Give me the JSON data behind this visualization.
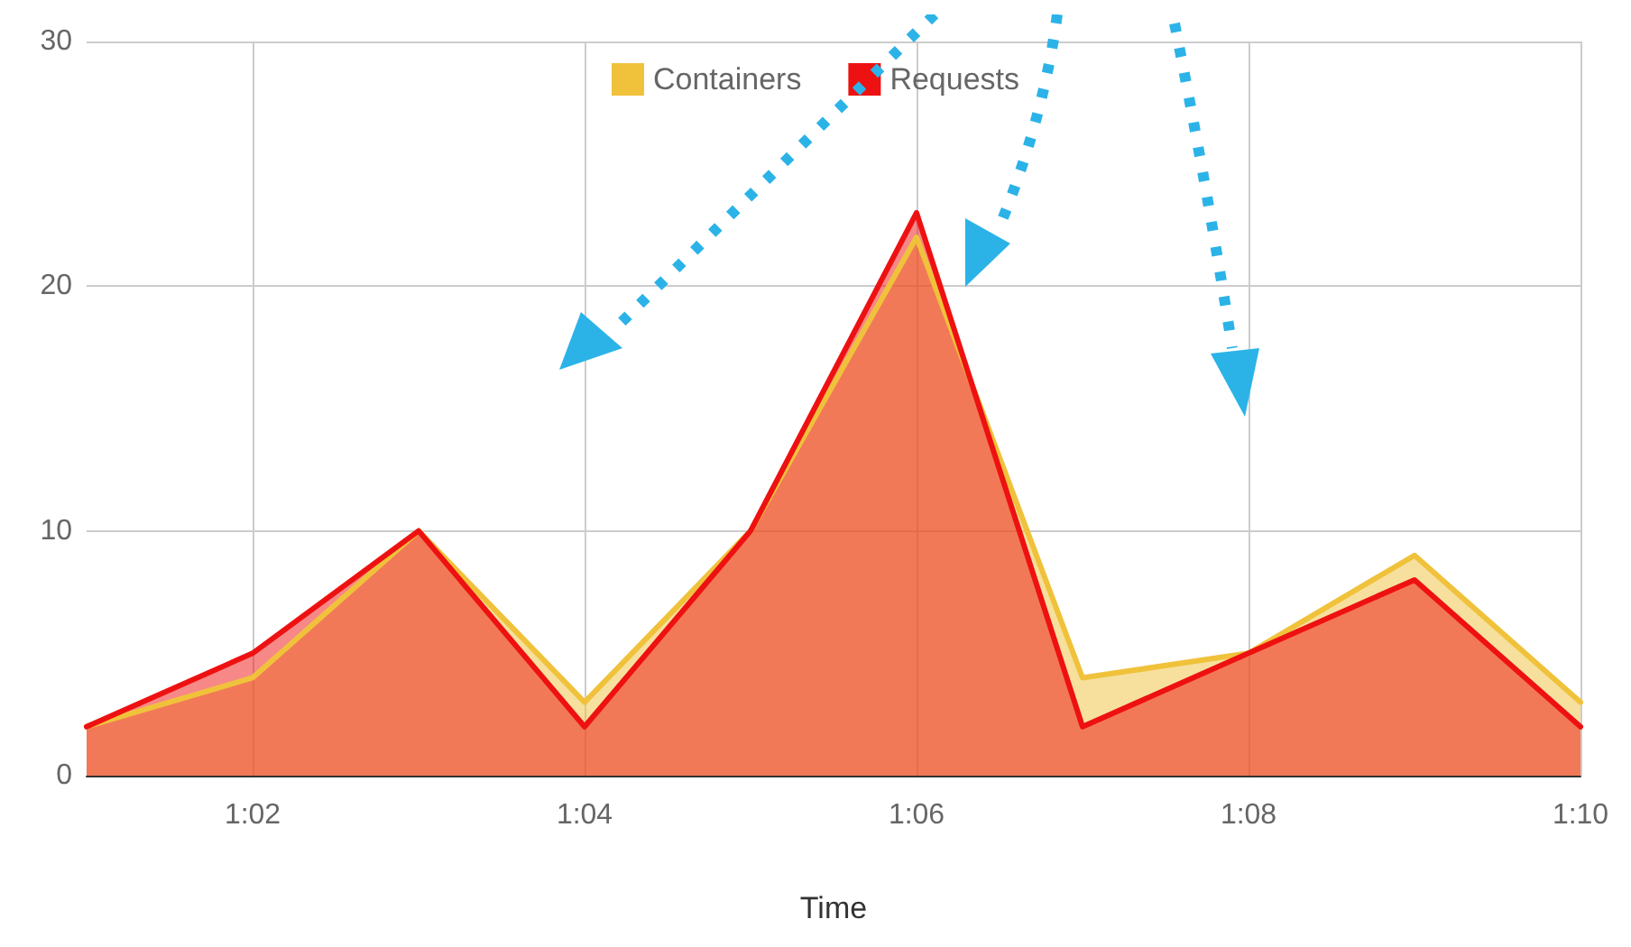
{
  "chart_data": {
    "type": "area",
    "xlabel": "Time",
    "categories": [
      null,
      "1:02",
      null,
      "1:04",
      null,
      "1:06",
      null,
      "1:08",
      null,
      "1:10"
    ],
    "series": [
      {
        "name": "Containers",
        "color": "#f0c23b",
        "values": [
          2,
          4,
          10,
          3,
          10,
          22,
          4,
          5,
          9,
          3
        ]
      },
      {
        "name": "Requests",
        "color": "#ee1111",
        "values": [
          2,
          5,
          10,
          2,
          10,
          23,
          2,
          5,
          8,
          2
        ]
      }
    ],
    "ylim": [
      0,
      30
    ],
    "yticks": [
      0,
      10,
      20,
      30
    ],
    "grid": true,
    "legend": "top",
    "marker": "none",
    "line_style": "solid"
  }
}
